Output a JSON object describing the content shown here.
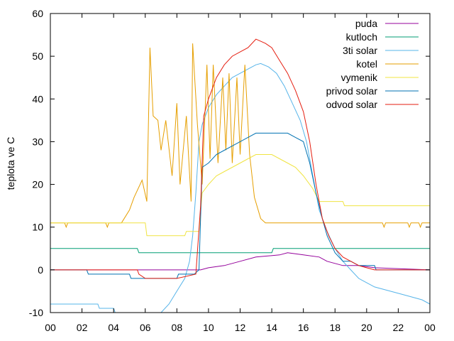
{
  "chart_data": {
    "type": "line",
    "title": "",
    "xlabel": "",
    "ylabel": "teplota ve C",
    "xlim": [
      0,
      24
    ],
    "ylim": [
      -10,
      60
    ],
    "x_ticks": [
      "00",
      "02",
      "04",
      "06",
      "08",
      "10",
      "12",
      "14",
      "16",
      "18",
      "20",
      "22",
      "00"
    ],
    "y_ticks": [
      "-10",
      "0",
      "10",
      "20",
      "30",
      "40",
      "50",
      "60"
    ],
    "grid": false,
    "legend_position": "top-right",
    "series": [
      {
        "name": "puda",
        "color": "#94009b",
        "points": [
          [
            0,
            0
          ],
          [
            9.5,
            0
          ],
          [
            10.0,
            0.5
          ],
          [
            11.0,
            1
          ],
          [
            12.0,
            2
          ],
          [
            13.0,
            3
          ],
          [
            14.5,
            3.5
          ],
          [
            15.0,
            4
          ],
          [
            16.0,
            3.5
          ],
          [
            17.0,
            3
          ],
          [
            17.5,
            2
          ],
          [
            18.5,
            1
          ],
          [
            19.5,
            1
          ],
          [
            20.5,
            0.5
          ],
          [
            24,
            0
          ]
        ]
      },
      {
        "name": "kutloch",
        "color": "#009e73",
        "points": [
          [
            0,
            5
          ],
          [
            5.5,
            5
          ],
          [
            5.6,
            4
          ],
          [
            14.0,
            4
          ],
          [
            14.1,
            5
          ],
          [
            24,
            5
          ]
        ]
      },
      {
        "name": "3ti solar",
        "color": "#56b4e9",
        "points": [
          [
            0,
            -8
          ],
          [
            3.0,
            -8
          ],
          [
            3.1,
            -9
          ],
          [
            4.0,
            -9
          ],
          [
            4.1,
            -10
          ],
          [
            6.5,
            -10.5
          ],
          [
            7.0,
            -10
          ],
          [
            7.5,
            -8
          ],
          [
            8.0,
            -5
          ],
          [
            8.5,
            -2
          ],
          [
            8.8,
            2
          ],
          [
            9.0,
            8
          ],
          [
            9.2,
            18
          ],
          [
            9.4,
            30
          ],
          [
            9.6,
            34
          ],
          [
            10.0,
            38
          ],
          [
            10.5,
            41
          ],
          [
            11.0,
            43
          ],
          [
            11.5,
            45
          ],
          [
            12.0,
            46
          ],
          [
            12.5,
            47
          ],
          [
            13.0,
            48
          ],
          [
            13.3,
            48.3
          ],
          [
            13.8,
            47.5
          ],
          [
            14.3,
            46
          ],
          [
            14.8,
            43
          ],
          [
            15.3,
            39
          ],
          [
            15.8,
            35
          ],
          [
            16.2,
            30
          ],
          [
            16.6,
            22
          ],
          [
            17.0,
            14
          ],
          [
            17.5,
            9
          ],
          [
            18.0,
            5
          ],
          [
            18.5,
            2
          ],
          [
            19.0,
            0
          ],
          [
            19.5,
            -2
          ],
          [
            20.5,
            -4
          ],
          [
            21.5,
            -5
          ],
          [
            22.5,
            -6
          ],
          [
            23.5,
            -7
          ],
          [
            24,
            -8
          ]
        ]
      },
      {
        "name": "kotel",
        "color": "#e69f00",
        "points": [
          [
            0,
            11
          ],
          [
            0.9,
            11
          ],
          [
            1.0,
            10
          ],
          [
            1.1,
            11
          ],
          [
            3.5,
            11
          ],
          [
            3.6,
            10
          ],
          [
            3.7,
            11
          ],
          [
            4.5,
            11
          ],
          [
            5.0,
            14
          ],
          [
            5.3,
            17
          ],
          [
            5.8,
            21
          ],
          [
            6.1,
            16
          ],
          [
            6.3,
            52
          ],
          [
            6.5,
            36
          ],
          [
            6.8,
            35
          ],
          [
            7.0,
            28
          ],
          [
            7.3,
            35
          ],
          [
            7.7,
            22
          ],
          [
            8.0,
            39
          ],
          [
            8.2,
            20
          ],
          [
            8.6,
            36
          ],
          [
            8.9,
            16
          ],
          [
            9.0,
            53
          ],
          [
            9.3,
            34
          ],
          [
            9.6,
            20
          ],
          [
            9.9,
            48
          ],
          [
            10.1,
            26
          ],
          [
            10.3,
            48
          ],
          [
            10.6,
            25
          ],
          [
            10.9,
            45
          ],
          [
            11.1,
            28
          ],
          [
            11.3,
            46
          ],
          [
            11.5,
            25
          ],
          [
            11.8,
            45
          ],
          [
            12.0,
            27
          ],
          [
            12.3,
            48
          ],
          [
            12.6,
            27
          ],
          [
            12.9,
            17
          ],
          [
            13.3,
            12
          ],
          [
            13.6,
            11
          ],
          [
            21.0,
            11
          ],
          [
            21.1,
            10
          ],
          [
            21.2,
            11
          ],
          [
            22.6,
            11
          ],
          [
            22.7,
            10
          ],
          [
            22.8,
            11
          ],
          [
            23.3,
            11
          ],
          [
            23.4,
            10
          ],
          [
            23.5,
            11
          ],
          [
            24,
            11
          ]
        ]
      },
      {
        "name": "vymenik",
        "color": "#f0e442",
        "points": [
          [
            0,
            11
          ],
          [
            6.0,
            11
          ],
          [
            6.1,
            8
          ],
          [
            8.5,
            8
          ],
          [
            8.6,
            9
          ],
          [
            9.4,
            9
          ],
          [
            9.6,
            18
          ],
          [
            10.0,
            20
          ],
          [
            10.5,
            22
          ],
          [
            11.0,
            23
          ],
          [
            11.5,
            24
          ],
          [
            12.0,
            25
          ],
          [
            12.5,
            26
          ],
          [
            13.0,
            27
          ],
          [
            14.0,
            27
          ],
          [
            14.5,
            26
          ],
          [
            15.0,
            25
          ],
          [
            15.5,
            24
          ],
          [
            16.0,
            22
          ],
          [
            16.6,
            19
          ],
          [
            17.0,
            16
          ],
          [
            18.5,
            16
          ],
          [
            18.6,
            15
          ],
          [
            24,
            15
          ]
        ]
      },
      {
        "name": "privod solar",
        "color": "#0072b2",
        "points": [
          [
            0,
            0
          ],
          [
            2.3,
            0
          ],
          [
            2.4,
            -1
          ],
          [
            4.0,
            -1
          ],
          [
            5.0,
            -1
          ],
          [
            5.1,
            -2
          ],
          [
            5.9,
            -2
          ],
          [
            6.0,
            -2
          ],
          [
            8.0,
            -2
          ],
          [
            8.1,
            -1
          ],
          [
            9.1,
            -1
          ],
          [
            9.4,
            0
          ],
          [
            9.6,
            24
          ],
          [
            10.0,
            25
          ],
          [
            10.5,
            27
          ],
          [
            11.0,
            28
          ],
          [
            11.5,
            29
          ],
          [
            12.0,
            30
          ],
          [
            12.5,
            31
          ],
          [
            13.0,
            32
          ],
          [
            15.0,
            32
          ],
          [
            15.5,
            31
          ],
          [
            16.0,
            30
          ],
          [
            16.4,
            25
          ],
          [
            16.8,
            18
          ],
          [
            17.2,
            12
          ],
          [
            17.5,
            8
          ],
          [
            18.0,
            4
          ],
          [
            18.5,
            2
          ],
          [
            19.0,
            2
          ],
          [
            19.5,
            1
          ],
          [
            20.5,
            1
          ],
          [
            20.6,
            0
          ],
          [
            24,
            0
          ]
        ]
      },
      {
        "name": "odvod solar",
        "color": "#e51e10",
        "points": [
          [
            0,
            0
          ],
          [
            2.3,
            0
          ],
          [
            5.5,
            0
          ],
          [
            5.6,
            -1
          ],
          [
            6.0,
            -2
          ],
          [
            8.0,
            -2
          ],
          [
            9.2,
            -1
          ],
          [
            9.5,
            15
          ],
          [
            9.7,
            36
          ],
          [
            10.0,
            40
          ],
          [
            10.5,
            45
          ],
          [
            11.0,
            48
          ],
          [
            11.5,
            50
          ],
          [
            12.0,
            51
          ],
          [
            12.5,
            52
          ],
          [
            13.0,
            54
          ],
          [
            13.6,
            53
          ],
          [
            14.0,
            52
          ],
          [
            14.5,
            49
          ],
          [
            15.0,
            46
          ],
          [
            15.5,
            42
          ],
          [
            16.0,
            37
          ],
          [
            16.4,
            30
          ],
          [
            16.8,
            20
          ],
          [
            17.2,
            12
          ],
          [
            17.6,
            8
          ],
          [
            18.0,
            5
          ],
          [
            18.5,
            3
          ],
          [
            19.0,
            2
          ],
          [
            19.5,
            1
          ],
          [
            20.0,
            0.5
          ],
          [
            20.5,
            0
          ],
          [
            24,
            0
          ]
        ]
      }
    ]
  }
}
